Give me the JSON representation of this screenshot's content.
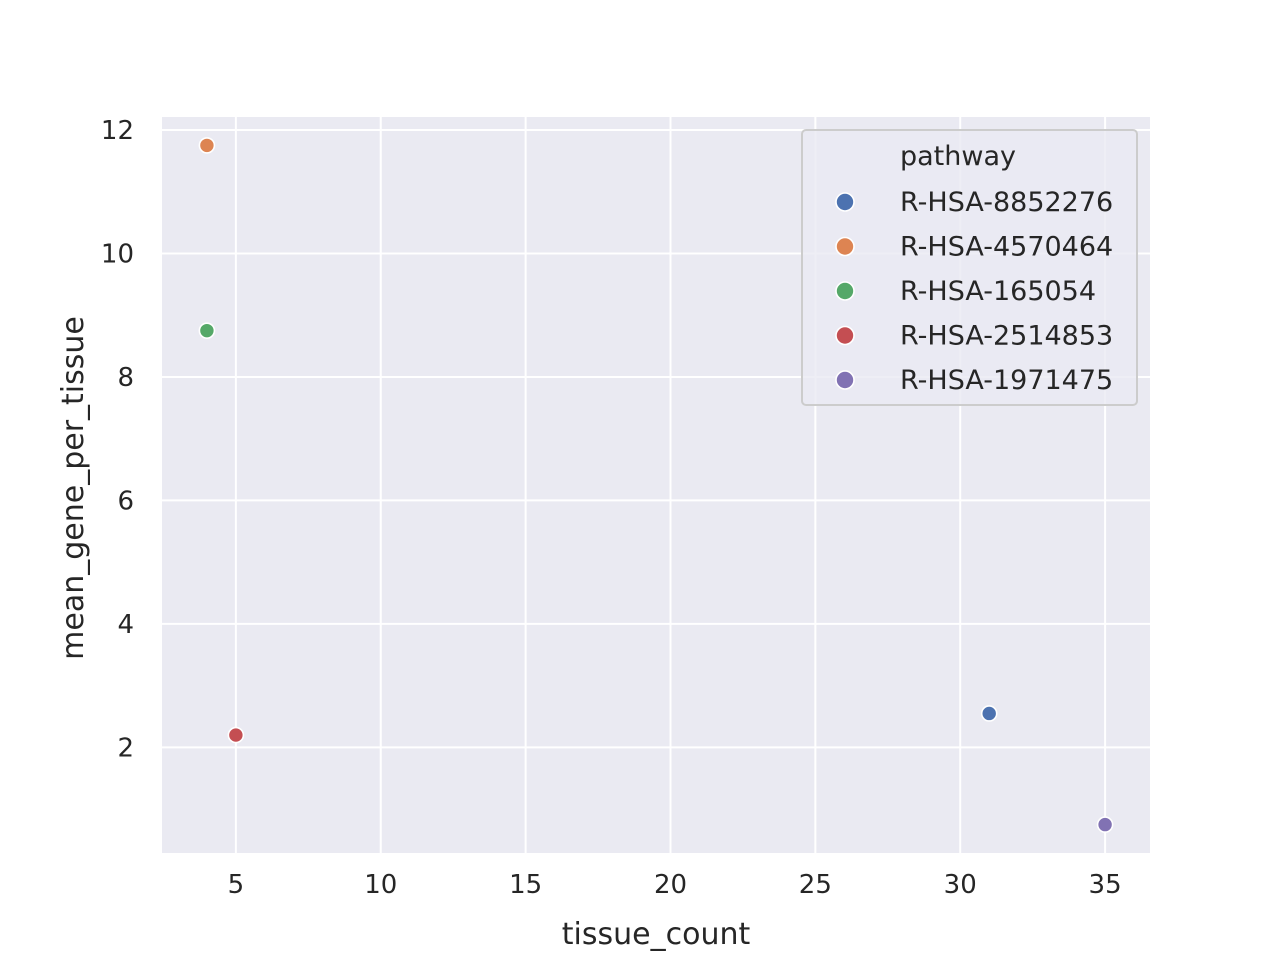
{
  "chart_data": {
    "type": "scatter",
    "title": "",
    "xlabel": "tissue_count",
    "ylabel": "mean_gene_per_tissue",
    "xlim": [
      2.45,
      36.55
    ],
    "ylim": [
      0.29,
      12.21
    ],
    "xticks": [
      5,
      10,
      15,
      20,
      25,
      30,
      35
    ],
    "yticks": [
      2,
      4,
      6,
      8,
      10,
      12
    ],
    "grid": true,
    "legend": {
      "title": "pathway",
      "placement": "top-right"
    },
    "series": [
      {
        "name": "R-HSA-8852276",
        "color": "#4c72b0",
        "points": [
          {
            "x": 31,
            "y": 2.55
          }
        ]
      },
      {
        "name": "R-HSA-4570464",
        "color": "#dd8452",
        "points": [
          {
            "x": 4,
            "y": 11.75
          }
        ]
      },
      {
        "name": "R-HSA-165054",
        "color": "#55a868",
        "points": [
          {
            "x": 4,
            "y": 8.75
          }
        ]
      },
      {
        "name": "R-HSA-2514853",
        "color": "#c44e52",
        "points": [
          {
            "x": 5,
            "y": 2.2
          }
        ]
      },
      {
        "name": "R-HSA-1971475",
        "color": "#8172b3",
        "points": [
          {
            "x": 35,
            "y": 0.75
          }
        ]
      }
    ]
  },
  "colors": {
    "plot_background": "#eaeaf2",
    "grid": "#ffffff"
  }
}
